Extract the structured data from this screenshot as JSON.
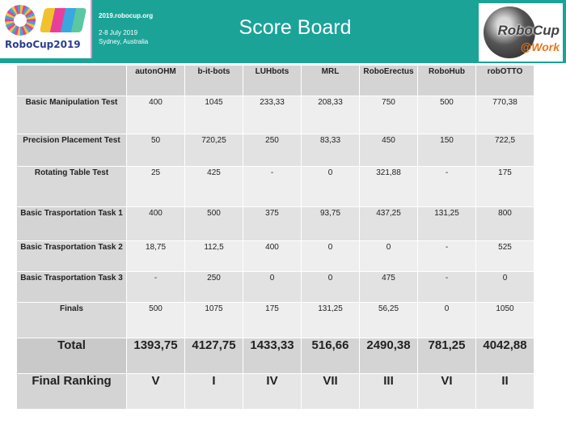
{
  "header": {
    "event_logo_text": "RoboCup2019",
    "event_url": "2019.robocup.org",
    "event_dates": "2-8 July 2019",
    "event_location": "Sydney, Australia",
    "title": "Score Board",
    "work_logo_brand": "RoboCup",
    "work_logo_sub": "@Work",
    "accent_color": "#1ba398"
  },
  "table": {
    "teams": [
      "autonOHM",
      "b-it-bots",
      "LUHbots",
      "MRL",
      "RoboErectus",
      "RoboHub",
      "robOTTO"
    ],
    "rows": [
      {
        "label": "Basic Manipulation Test",
        "values": [
          "400",
          "1045",
          "233,33",
          "208,33",
          "750",
          "500",
          "770,38"
        ]
      },
      {
        "label": "Precision Placement Test",
        "values": [
          "50",
          "720,25",
          "250",
          "83,33",
          "450",
          "150",
          "722,5"
        ]
      },
      {
        "label": "Rotating Table Test",
        "values": [
          "25",
          "425",
          "-",
          "0",
          "321,88",
          "-",
          "175"
        ]
      },
      {
        "label": "Basic Trasportation Task 1",
        "values": [
          "400",
          "500",
          "375",
          "93,75",
          "437,25",
          "131,25",
          "800"
        ]
      },
      {
        "label": "Basic Trasportation Task 2",
        "values": [
          "18,75",
          "112,5",
          "400",
          "0",
          "0",
          "-",
          "525"
        ]
      },
      {
        "label": "Basic Trasportation Task 3",
        "values": [
          "-",
          "250",
          "0",
          "0",
          "475",
          "-",
          "0"
        ]
      },
      {
        "label": "Finals",
        "values": [
          "500",
          "1075",
          "175",
          "131,25",
          "56,25",
          "0",
          "1050"
        ]
      }
    ],
    "total": {
      "label": "Total",
      "values": [
        "1393,75",
        "4127,75",
        "1433,33",
        "516,66",
        "2490,38",
        "781,25",
        "4042,88"
      ]
    },
    "ranking": {
      "label": "Final Ranking",
      "values": [
        "V",
        "I",
        "IV",
        "VII",
        "III",
        "VI",
        "II"
      ]
    }
  }
}
